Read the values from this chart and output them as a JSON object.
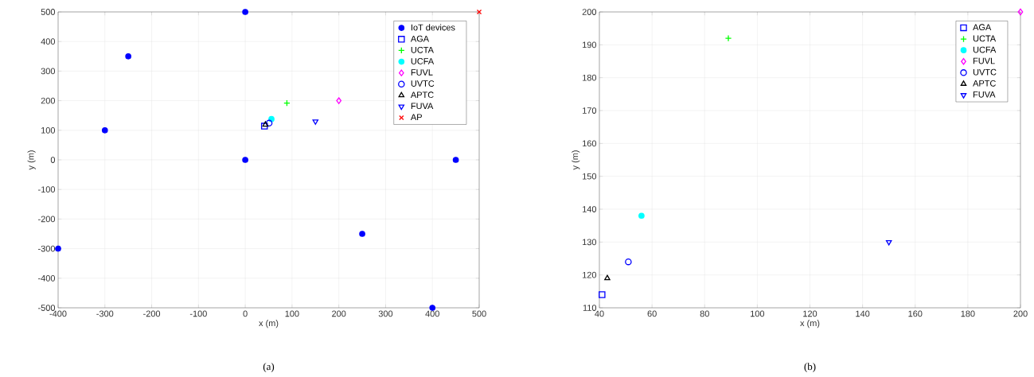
{
  "chart_data": [
    {
      "type": "scatter",
      "xlabel": "x (m)",
      "ylabel": "y (m)",
      "annotations": [
        "(a)"
      ],
      "xlim": [
        -400,
        500
      ],
      "ylim": [
        -500,
        500
      ],
      "xticks": [
        -400,
        -300,
        -200,
        -100,
        0,
        100,
        200,
        300,
        400,
        500
      ],
      "yticks": [
        -500,
        -400,
        -300,
        -200,
        -100,
        0,
        100,
        200,
        300,
        400,
        500
      ],
      "grid": true,
      "legend": "top right",
      "series": [
        {
          "name": "IoT devices",
          "color": "#0000ff",
          "marker": "dot",
          "x": [
            0,
            -250,
            -300,
            0,
            -400,
            250,
            400,
            450
          ],
          "values": [
            500,
            350,
            100,
            0,
            -300,
            -250,
            -500,
            0
          ]
        },
        {
          "name": "AGA",
          "color": "#0000ff",
          "marker": "square",
          "x": [
            41
          ],
          "values": [
            114
          ]
        },
        {
          "name": "UCTA",
          "color": "#00ff00",
          "marker": "plus",
          "x": [
            89
          ],
          "values": [
            192
          ]
        },
        {
          "name": "UCFA",
          "color": "#00ffff",
          "marker": "dot",
          "x": [
            56
          ],
          "values": [
            138
          ]
        },
        {
          "name": "FUVL",
          "color": "#ff00ff",
          "marker": "diamond",
          "x": [
            200
          ],
          "values": [
            200
          ]
        },
        {
          "name": "UVTC",
          "color": "#0000ff",
          "marker": "circle",
          "x": [
            51
          ],
          "values": [
            124
          ]
        },
        {
          "name": "APTC",
          "color": "#000000",
          "marker": "triangle",
          "x": [
            43
          ],
          "values": [
            119
          ]
        },
        {
          "name": "FUVA",
          "color": "#0000ff",
          "marker": "triangle-down",
          "x": [
            150
          ],
          "values": [
            130
          ]
        },
        {
          "name": "AP",
          "color": "#ff0000",
          "marker": "cross",
          "x": [
            500
          ],
          "values": [
            500
          ]
        }
      ]
    },
    {
      "type": "scatter",
      "xlabel": "x (m)",
      "ylabel": "y (m)",
      "annotations": [
        "(b)"
      ],
      "xlim": [
        40,
        200
      ],
      "ylim": [
        110,
        200
      ],
      "xticks": [
        40,
        60,
        80,
        100,
        120,
        140,
        160,
        180,
        200
      ],
      "yticks": [
        110,
        120,
        130,
        140,
        150,
        160,
        170,
        180,
        190,
        200
      ],
      "grid": true,
      "legend": "top right",
      "series": [
        {
          "name": "AGA",
          "color": "#0000ff",
          "marker": "square",
          "x": [
            41
          ],
          "values": [
            114
          ]
        },
        {
          "name": "UCTA",
          "color": "#00ff00",
          "marker": "plus",
          "x": [
            89
          ],
          "values": [
            192
          ]
        },
        {
          "name": "UCFA",
          "color": "#00ffff",
          "marker": "dot",
          "x": [
            56
          ],
          "values": [
            138
          ]
        },
        {
          "name": "FUVL",
          "color": "#ff00ff",
          "marker": "diamond",
          "x": [
            200
          ],
          "values": [
            200
          ]
        },
        {
          "name": "UVTC",
          "color": "#0000ff",
          "marker": "circle",
          "x": [
            51
          ],
          "values": [
            124
          ]
        },
        {
          "name": "APTC",
          "color": "#000000",
          "marker": "triangle",
          "x": [
            43
          ],
          "values": [
            119
          ]
        },
        {
          "name": "FUVA",
          "color": "#0000ff",
          "marker": "triangle-down",
          "x": [
            150
          ],
          "values": [
            130
          ]
        }
      ]
    }
  ]
}
